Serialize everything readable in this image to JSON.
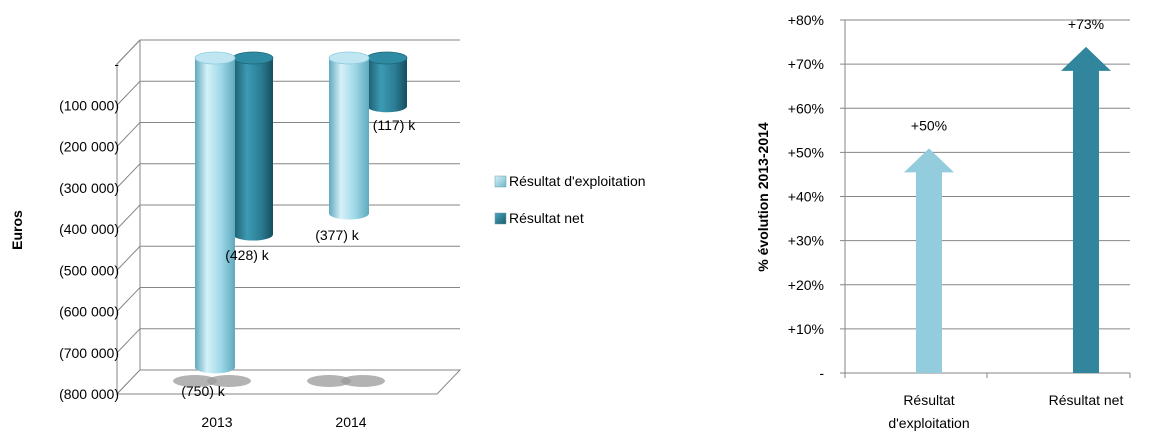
{
  "chart_data": [
    {
      "type": "bar",
      "style": "3d-cylinder",
      "ylabel": "Euros",
      "xlabel": "",
      "categories": [
        "2013",
        "2014"
      ],
      "ylim": [
        -800000,
        0
      ],
      "yticks": [
        {
          "value": 0,
          "label": "-"
        },
        {
          "value": -100000,
          "label": "(100 000)"
        },
        {
          "value": -200000,
          "label": "(200 000)"
        },
        {
          "value": -300000,
          "label": "(300 000)"
        },
        {
          "value": -400000,
          "label": "(400 000)"
        },
        {
          "value": -500000,
          "label": "(500 000)"
        },
        {
          "value": -600000,
          "label": "(600 000)"
        },
        {
          "value": -700000,
          "label": "(700 000)"
        },
        {
          "value": -800000,
          "label": "(800 000)"
        }
      ],
      "grid": true,
      "legend_position": "right",
      "series": [
        {
          "name": "Résultat d'exploitation",
          "color": "#8DD3E6",
          "values": [
            -750000,
            -377000
          ],
          "data_labels": [
            "(750) k",
            "(377) k"
          ]
        },
        {
          "name": "Résultat net",
          "color": "#2E7E94",
          "values": [
            -428000,
            -117000
          ],
          "data_labels": [
            "(428) k",
            "(117) k"
          ]
        }
      ]
    },
    {
      "type": "bar",
      "style": "arrows",
      "ylabel": "% évolution 2013-2014",
      "xlabel": "",
      "categories": [
        "Résultat d'exploitation",
        "Résultat net"
      ],
      "values": [
        50,
        73
      ],
      "data_labels": [
        "+50%",
        "+73%"
      ],
      "colors": [
        "#93CDDD",
        "#31859C"
      ],
      "ylim": [
        0,
        80
      ],
      "yticks": [
        {
          "value": 0,
          "label": "-"
        },
        {
          "value": 10,
          "label": "+10%"
        },
        {
          "value": 20,
          "label": "+20%"
        },
        {
          "value": 30,
          "label": "+30%"
        },
        {
          "value": 40,
          "label": "+40%"
        },
        {
          "value": 50,
          "label": "+50%"
        },
        {
          "value": 60,
          "label": "+60%"
        },
        {
          "value": 70,
          "label": "+70%"
        },
        {
          "value": 80,
          "label": "+80%"
        }
      ],
      "grid": true
    }
  ]
}
